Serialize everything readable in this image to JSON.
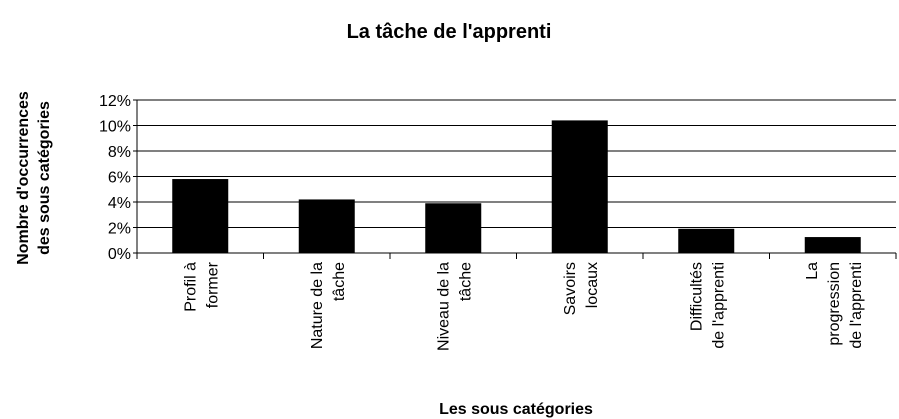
{
  "chart_data": {
    "type": "bar",
    "title": "La tâche de l'apprenti",
    "x_label": "Les sous catégories",
    "y_label": [
      "Nombre d'occurrences",
      "des sous catégories"
    ],
    "categories": [
      [
        "Profil à",
        "former"
      ],
      [
        "Nature de la",
        "tâche"
      ],
      [
        "Niveau de la",
        "tâche"
      ],
      [
        "Savoirs",
        "locaux"
      ],
      [
        "Difficultés",
        "de l'apprenti"
      ],
      [
        "La",
        "progression",
        "de l'apprenti"
      ]
    ],
    "values": [
      5.8,
      4.2,
      3.9,
      10.4,
      1.9,
      1.25
    ],
    "color": "#000000",
    "ylim": [
      0,
      12
    ],
    "yticks": [
      {
        "value": 0,
        "label": "0%"
      },
      {
        "value": 2,
        "label": "2%"
      },
      {
        "value": 4,
        "label": "4%"
      },
      {
        "value": 6,
        "label": "6%"
      },
      {
        "value": 8,
        "label": "8%"
      },
      {
        "value": 10,
        "label": "10%"
      },
      {
        "value": 12,
        "label": "12%"
      }
    ],
    "grid": true
  }
}
